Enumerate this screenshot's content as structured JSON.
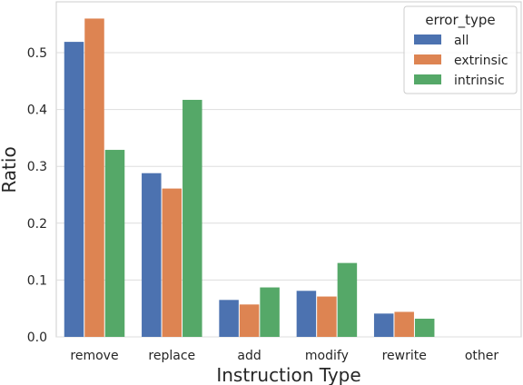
{
  "chart_data": {
    "type": "bar",
    "title": "",
    "xlabel": "Instruction Type",
    "ylabel": "Ratio",
    "categories": [
      "remove",
      "replace",
      "add",
      "modify",
      "rewrite",
      "other"
    ],
    "series": [
      {
        "name": "all",
        "color": "#4c72b0",
        "values": [
          0.519,
          0.288,
          0.065,
          0.081,
          0.041,
          0.0
        ]
      },
      {
        "name": "extrinsic",
        "color": "#dd8452",
        "values": [
          0.56,
          0.261,
          0.057,
          0.071,
          0.044,
          0.0
        ]
      },
      {
        "name": "intrinsic",
        "color": "#55a868",
        "values": [
          0.329,
          0.417,
          0.087,
          0.13,
          0.032,
          0.0
        ]
      }
    ],
    "ylim": [
      0,
      0.585
    ],
    "yticks": [
      "0.0",
      "0.1",
      "0.2",
      "0.3",
      "0.4",
      "0.5"
    ],
    "grid": true,
    "legend": {
      "title": "error_type",
      "placement": "top-right"
    }
  }
}
